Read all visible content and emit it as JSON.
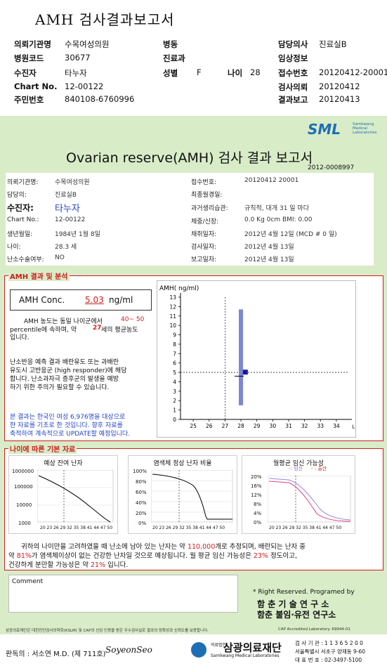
{
  "top_title": "AMH 검사결과보고서",
  "header": {
    "rows": [
      {
        "l1": "의뢰기관명",
        "v1": "수목여성의원",
        "l2": "병동",
        "v2": "",
        "l3": "담당의사",
        "v3": "진료실B"
      },
      {
        "l1": "병원코드",
        "v1": "30677",
        "l2": "진료과",
        "v2": "",
        "l3": "임상정보",
        "v3": ""
      },
      {
        "l1": "수진자",
        "v1": "타누자",
        "l2": "성별",
        "v2": "F",
        "l2b": "나이",
        "v2b": "28",
        "l3": "접수번호",
        "v3": "20120412-20001"
      },
      {
        "l1": "Chart No.",
        "v1": "12-00122",
        "l2": "",
        "v2": "",
        "l3": "검사의뢰",
        "v3": "20120412"
      },
      {
        "l1": "주민번호",
        "v1": "840108-6760996",
        "l2": "",
        "v2": "",
        "l3": "결과보고",
        "v3": "20120413"
      }
    ]
  },
  "logo": {
    "text": "SML",
    "sub1": "Samkwang",
    "sub2": "Medical",
    "sub3": "Laboratories"
  },
  "report": {
    "title": "Ovarian reserve(AMH) 검사 결과 보고서",
    "number": "2012-0008997",
    "left": [
      {
        "l": "의뢰기관명:",
        "v": "수목여성의원"
      },
      {
        "l": "담당의:",
        "v": "진료실B"
      },
      {
        "l": "수진자:",
        "v": "타누자"
      },
      {
        "l": "Chart No.:",
        "v": "12-00122"
      },
      {
        "l": "생년월일:",
        "v": "1984년 1월 8일"
      },
      {
        "l": "나이:",
        "v": "28.3 세"
      },
      {
        "l": "난소수술여부:",
        "v": "NO"
      }
    ],
    "right": [
      {
        "l": "접수번호:",
        "v": "20120412 20001"
      },
      {
        "l": "최종월경일:",
        "v": ""
      },
      {
        "l": "과거생리습관:",
        "v": "규칙적, 대개  31 일 마다"
      },
      {
        "l": "체중/신장:",
        "v": "0.0 Kg       0cm    BMI:   0.00"
      },
      {
        "l": "채취일자:",
        "v": "2012년 4월 12일   (MCD #  0 일)"
      },
      {
        "l": "검사일자:",
        "v": "2012년 4월 13일"
      },
      {
        "l": "보고일자:",
        "v": "2012년 4월 13일"
      }
    ]
  },
  "amh": {
    "section_label": "AMH 결과 및 분석",
    "conc_label": "AMH Conc.",
    "conc_value": "5.03",
    "conc_unit": "ng/ml",
    "text1a": "AMH 농도는 동일 나이군에서",
    "text1b": "40~  50",
    "text1c": "percentile에 속하며, 약",
    "text1d": "27",
    "text1e": "세의 평균농도",
    "text1f": "입니다.",
    "text2": [
      "난소반응 예측 결과 배란유도 또는 과배란",
      "유도시 고반응군 (high responder)에 해당",
      "합니다. 난소과자극 증후군의 발생을 예방",
      "하기 위한 주의가 필요할 수 있습니다."
    ],
    "text3": [
      "본 결과는 한국인 여성 6,976명을 대상으로",
      "한 자료를 기초로 한 것입니다. 향후 자료를",
      "축적하여 계속적으로 UPDATE할 예정입니다."
    ]
  },
  "chart_data": {
    "type": "scatter",
    "ylabel": "AMH( ng/ml)",
    "xlabel": "나이",
    "x_ticks": [
      25,
      26,
      27,
      28,
      29,
      30,
      31,
      32,
      33,
      34
    ],
    "y_ticks": [
      0,
      1,
      2,
      3,
      4,
      5,
      6,
      7,
      8,
      9,
      10,
      11,
      12,
      13
    ],
    "xlim": [
      24.2,
      34.8
    ],
    "ylim": [
      0,
      13
    ],
    "range_bar": {
      "x": 28,
      "low": 1.5,
      "high": 11.7
    },
    "point": {
      "x": 28.3,
      "y": 5.03
    },
    "median_tick": {
      "x": 28,
      "y": 4.6
    },
    "reference_line_x": 27,
    "reference_line_y": 5
  },
  "basic": {
    "section_label": "나이에 따른 기본 자료",
    "chart1": {
      "title": "예상 잔여 난자",
      "yticks": [
        "1000000",
        "100000",
        "10000",
        "1000"
      ],
      "xlabel": "20 23 26 29 32 35 38 41 44 47 50"
    },
    "chart2": {
      "title": "염색체 정상 난자 비율",
      "yticks": [
        "100%",
        "80%",
        "60%",
        "40%",
        "20%",
        "0%"
      ],
      "xlabel": "20 23 26 29 32 35 38 41 44 47 50"
    },
    "chart3": {
      "title": "월평균 임신 가능성",
      "legend1": "임신",
      "legend2": "출산",
      "yticks": [
        "20%",
        "16%",
        "12%",
        "8%",
        "4%",
        "0%"
      ],
      "xlabel": "20 23 26 29 32 35 38 41 44 47 50"
    },
    "summary1a": "귀하의 나이만을 고려하였을 때 난소에 남아 있는 난자는 약",
    "summary1b": "110,000",
    "summary1c": "개로 추정되며, 배란되는 난자 중",
    "summary2a": "약",
    "summary2b": "81%",
    "summary2c": "가 염색체이상이 없는 건강한 난자일 것으로 예상됩니다. 월 평균 임신 가능성은",
    "summary2d": "23%",
    "summary2e": "정도이고,",
    "summary3a": "건강하게 분만할 가능성은 약",
    "summary3b": "21%",
    "summary3c": "입니다."
  },
  "comment": {
    "label": "Comment"
  },
  "rights": {
    "line1": "* Right Reserved. Programed by",
    "line2": "함 춘  기 술  연 구 소",
    "line3": "함춘 불임·유전 연구소"
  },
  "footer": {
    "note": "삼광의료재단은 대한진단검사의학회(KSLM) 및 CAP의 신임 인증을 받은 우수검사실로 결과의 정확성과 신뢰도를 보증합니다.",
    "cap": "CAP Accredited Laboratory. 69944-01",
    "doctor": "판독의 : 서소연 M.D. (제 711호)",
    "signature": "SoyeonSeo",
    "foundation": "삼광의료재단",
    "foundation_small": "의료법인",
    "foundation_en": "Samkwang Medical Laboratories",
    "contact1": "검 사 기 관 : 1 1 3 6 5 2 0 0",
    "contact2": "서울특별시 서초구 양재동 9-60",
    "contact3": "대 표 번 호 : 02-3497-5100"
  },
  "colors": {
    "green_bg": "#d8ecc8",
    "red": "#d21c1c",
    "blue_bar": "#7b86d6",
    "dark_blue": "#1a1a99"
  }
}
